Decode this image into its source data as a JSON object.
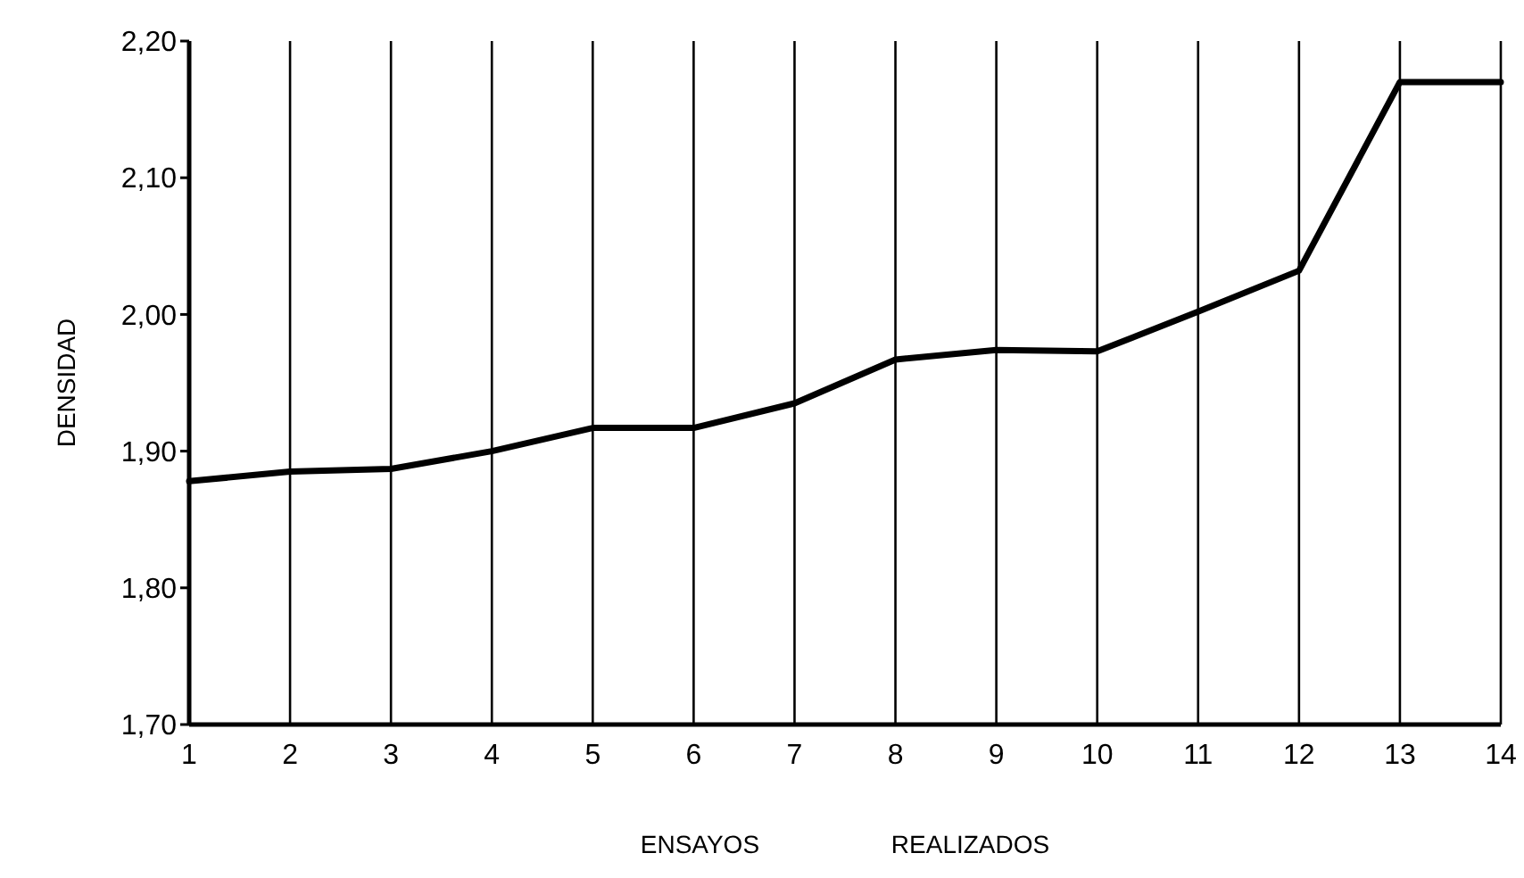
{
  "chart_data": {
    "type": "line",
    "xlabel": "ENSAYOS REALIZADOS",
    "ylabel": "DENSIDAD",
    "x": [
      1,
      2,
      3,
      4,
      5,
      6,
      7,
      8,
      9,
      10,
      11,
      12,
      13,
      14
    ],
    "series": [
      {
        "color": "#000000",
        "values": [
          1.878,
          1.885,
          1.887,
          1.9,
          1.917,
          1.917,
          1.935,
          1.967,
          1.974,
          1.973,
          2.002,
          2.032,
          2.17,
          2.17
        ]
      }
    ],
    "xlim": [
      1,
      14
    ],
    "xticks": [
      1,
      2,
      3,
      4,
      5,
      6,
      7,
      8,
      9,
      10,
      11,
      12,
      13,
      14
    ],
    "ylim": [
      1.7,
      2.2
    ],
    "yticks": [
      {
        "value": 1.7,
        "label": "1,70"
      },
      {
        "value": 1.8,
        "label": "1,80"
      },
      {
        "value": 1.9,
        "label": "1,90"
      },
      {
        "value": 2.0,
        "label": "2,00"
      },
      {
        "value": 2.1,
        "label": "2,10"
      },
      {
        "value": 2.2,
        "label": "2,20"
      }
    ],
    "grid": "x",
    "marker": "none",
    "line_style": "solid"
  }
}
